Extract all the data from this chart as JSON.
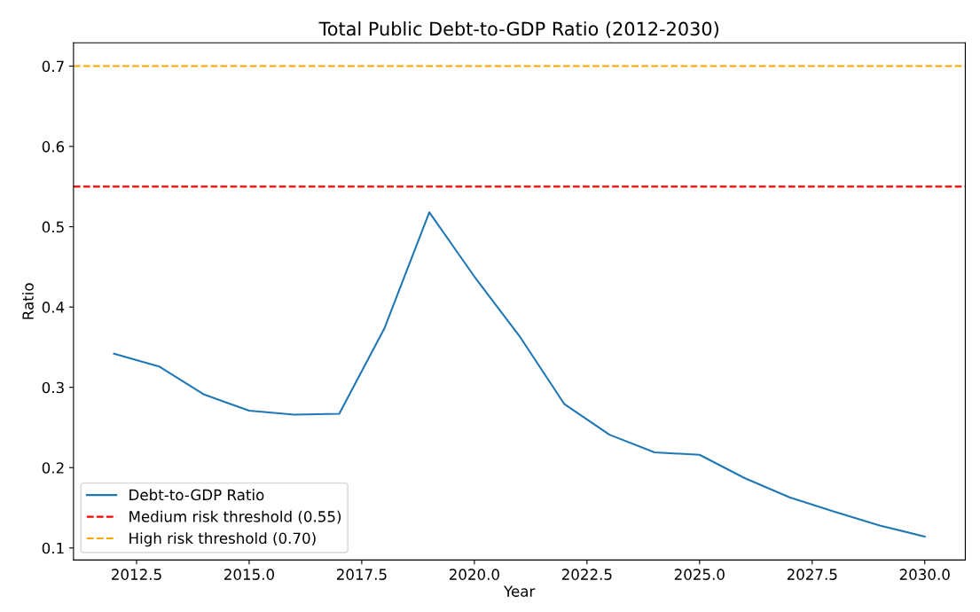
{
  "chart_data": {
    "type": "line",
    "title": "Total Public Debt-to-GDP Ratio (2012-2030)",
    "xlabel": "Year",
    "ylabel": "Ratio",
    "x": [
      2012,
      2013,
      2014,
      2015,
      2016,
      2017,
      2018,
      2019,
      2020,
      2021,
      2022,
      2023,
      2024,
      2025,
      2026,
      2027,
      2028,
      2029,
      2030
    ],
    "series": [
      {
        "name": "Debt-to-GDP Ratio",
        "color": "#1f77b4",
        "values": [
          0.342,
          0.326,
          0.291,
          0.271,
          0.266,
          0.267,
          0.373,
          0.518,
          0.438,
          0.364,
          0.279,
          0.241,
          0.219,
          0.216,
          0.187,
          0.163,
          0.145,
          0.128,
          0.114
        ]
      }
    ],
    "ref_lines": [
      {
        "axis": "y",
        "value": 0.55,
        "label": "Medium risk threshold (0.55)",
        "color": "#ff0000",
        "line_style": "dashed"
      },
      {
        "axis": "y",
        "value": 0.7,
        "label": "High risk threshold (0.70)",
        "color": "#ffa500",
        "line_style": "dashed"
      }
    ],
    "xlim": [
      2011.1,
      2030.9
    ],
    "ylim": [
      0.085,
      0.729
    ],
    "xticks": [
      {
        "value": 2012.5,
        "label": "2012.5"
      },
      {
        "value": 2015,
        "label": "2015.0"
      },
      {
        "value": 2017.5,
        "label": "2017.5"
      },
      {
        "value": 2020,
        "label": "2020.0"
      },
      {
        "value": 2022.5,
        "label": "2022.5"
      },
      {
        "value": 2025,
        "label": "2025.0"
      },
      {
        "value": 2027.5,
        "label": "2027.5"
      },
      {
        "value": 2030,
        "label": "2030.0"
      }
    ],
    "yticks": [
      0.1,
      0.2,
      0.3,
      0.4,
      0.5,
      0.6,
      0.7
    ],
    "grid": false,
    "legend": "bottom left",
    "marker": "none",
    "line_style": "solid"
  }
}
